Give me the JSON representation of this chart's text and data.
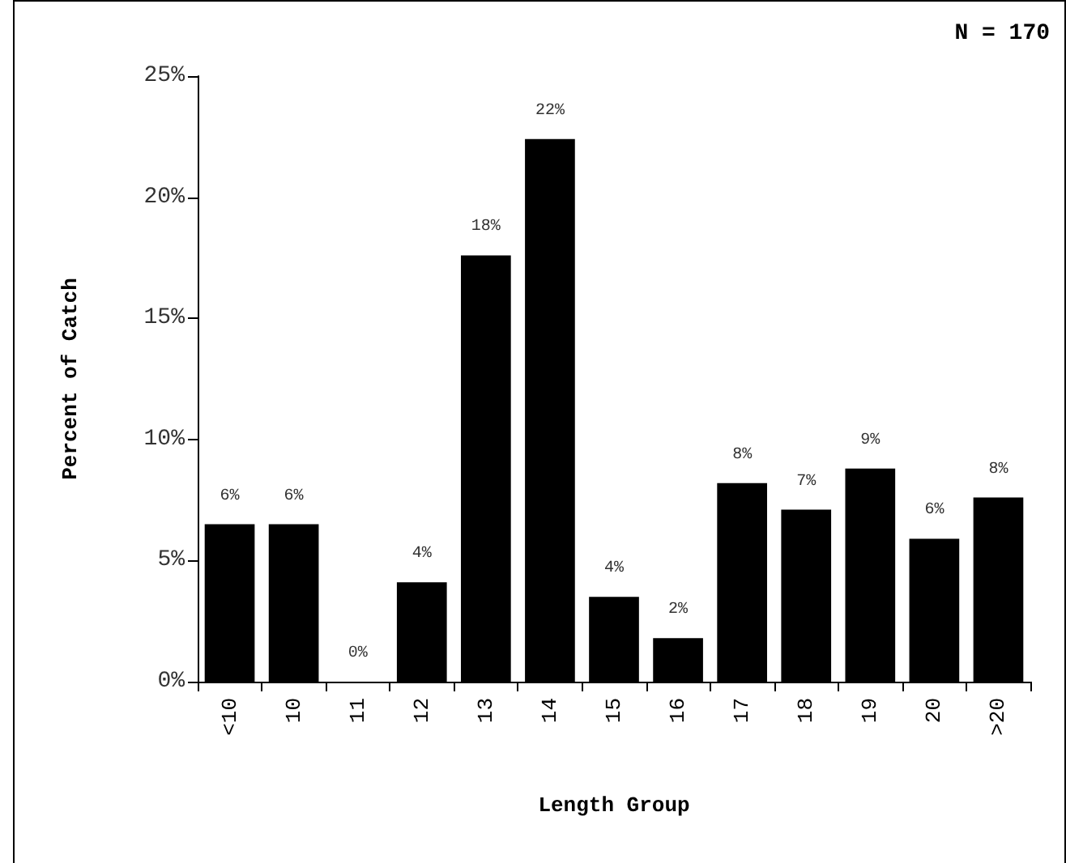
{
  "chart_data": {
    "type": "bar",
    "xlabel": "Length Group",
    "ylabel": "Percent of Catch",
    "annotations": [
      "N = 170"
    ],
    "categories": [
      "<10",
      "10",
      "11",
      "12",
      "13",
      "14",
      "15",
      "16",
      "17",
      "18",
      "19",
      "20",
      ">20"
    ],
    "values": [
      6.5,
      6.5,
      0,
      4.1,
      17.6,
      22.4,
      3.5,
      1.8,
      8.2,
      7.1,
      8.8,
      5.9,
      7.6
    ],
    "value_labels": [
      "6%",
      "6%",
      "0%",
      "4%",
      "18%",
      "22%",
      "4%",
      "2%",
      "8%",
      "7%",
      "9%",
      "6%",
      "8%"
    ],
    "color": "#000000",
    "ylim": [
      0,
      25
    ],
    "yticks": [
      {
        "value": 0,
        "label": "0%"
      },
      {
        "value": 5,
        "label": "5%"
      },
      {
        "value": 10,
        "label": "10%"
      },
      {
        "value": 15,
        "label": "15%"
      },
      {
        "value": 20,
        "label": "20%"
      },
      {
        "value": 25,
        "label": "25%"
      }
    ],
    "grid": false
  }
}
